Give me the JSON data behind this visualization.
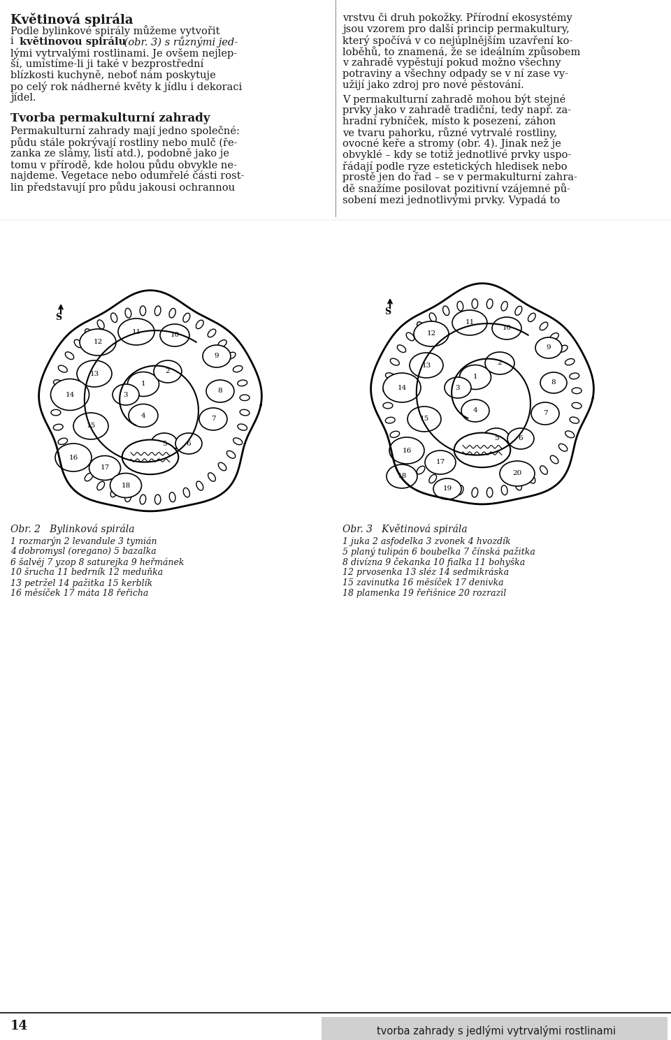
{
  "page_width": 9.6,
  "page_height": 14.89,
  "bg_color": "#ffffff",
  "text_color": "#1a1a1a",
  "title1": "Květinová spirála",
  "para1": "Podle bylinkové spirály můžeme vytvořit\ni květinovou spirálu (obr. 3) s různými jed-\nlými vytrvalými rostlinami. Je ovšem nejlep-\nší, umístíme-li ji také v bezprostřední\nbízkosti kuchyně, neboť nám poskytuje\npo celý rok nádherné květy k jídlu i dekoraci\njídel.",
  "right_para1": "vrstvu či druh pokožky. Přírodní ekosystémy\njsou vzorem pro další princip permakultury,\nkterý spočívá v co nejúplnějším uzavření ko-\nloběhů, to znamená, že se ideálním způsobem\nv zahradě vypěstují pokud možno všechny\npotraviny a všechny odpady se v ní zase vy-\nužijí jako zdroj pro nové pěstování.",
  "right_para2": "V permakulturní zahradě mohou být stejné\nprvky jako v zahradě tradiční, tedy např. za-\nhradní rybníček, místo k posezení, záhon\nve tvaru pahorku, různé vytrvalé rostliny,\novocné keře a stromy (obr. 4). Jinak než je\nobvyklé – kdy se totiž jednotlivé prvky uspo-\nřádají podle ryze estetických hledisek nebo\nprostě jen do řad – se v permakulturní zahra-\ndě snažíme posilovat pozitivní vzájemné pů-\nsobení mezi jednotlivými prvky. Vypadá to",
  "section_title": "Tvorba permakulturní zahrady",
  "section_para": "Permakulturní zahrady mají jedno společné:\npůdu stále pokrývají rostliny nebo mulč (ře-\nzanka ze slámy, listí atd.), podobně jako je\ntomu v přírodě, kde holou půdu obvykle ne-\nnajdeme. Vegetace nebo odumřelé části rost-\nlin představují pro půdu jakousi ochrannou",
  "caption2": "Obr. 2   Bylinková spirála",
  "caption3": "Obr. 3   Květinová spirála",
  "legend2": "1 rozmarýn 2 levandule 3 tymián\n4 dobromysl (oregano) 5 bazalka\n6 šalvěj 7 yzop 8 saturejka 9 heřmánek\n10 šrucha 11 bedrník 12 meduňka\n13 petržel 14 pažitka 15 kerblík\n16 měsíček 17 máta 18 řeřicha",
  "legend3": "1 juka 2 asfodelka 3 zvonek 4 hvozdík\n5 planý tulipán 6 boubelka 7 čínská pažitka\n8 divízna 9 čekanka 10 fialka 11 bohyška\n12 prvosenka 13 sléz 14 sedmikráska\n15 zavinutka 16 měsíček 17 denivka\n18 plamenka 19 řeřišnice 20 rozrazil",
  "footer_page": "14",
  "footer_text": "tvorba zahrady s jedlými vytrvalými rostlinami"
}
